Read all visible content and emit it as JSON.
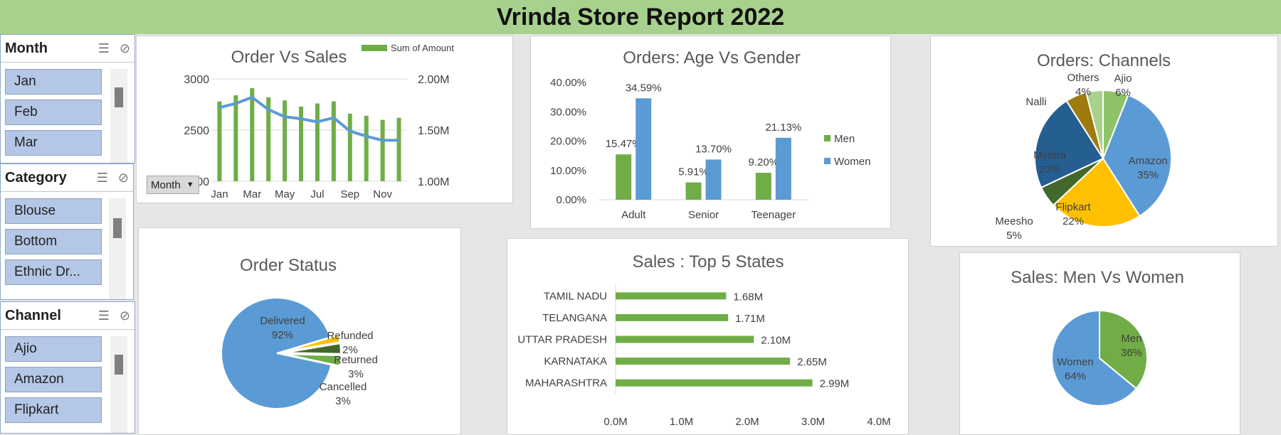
{
  "report_title": "Vrinda Store Report 2022",
  "colors": {
    "green": "#70ad47",
    "blue": "#5b9bd5",
    "yellow": "#ffc000",
    "dark_blue": "#255e91",
    "dark_green": "#43682b",
    "olive": "#9e7b0f",
    "light_green": "#8fc36a",
    "slicer_item": "#b4c7e7",
    "header_green": "#a9d18e"
  },
  "slicers": [
    {
      "title": "Month",
      "items": [
        "Jan",
        "Feb",
        "Mar"
      ],
      "icons": [
        "multi-select-icon",
        "clear-filter-icon"
      ]
    },
    {
      "title": "Category",
      "items": [
        "Blouse",
        "Bottom",
        "Ethnic Dr..."
      ],
      "icons": [
        "multi-select-icon",
        "clear-filter-icon"
      ]
    },
    {
      "title": "Channel",
      "items": [
        "Ajio",
        "Amazon",
        "Flipkart"
      ],
      "icons": [
        "multi-select-icon",
        "clear-filter-icon"
      ]
    }
  ],
  "month_filter_button": "Month",
  "chart_data": [
    {
      "id": "order_vs_sales",
      "type": "bar",
      "title": "Order Vs Sales",
      "legend": [
        "Sum of Amount"
      ],
      "legend_position": "top-right",
      "categories": [
        "Jan",
        "Feb",
        "Mar",
        "Apr",
        "May",
        "Jun",
        "Jul",
        "Aug",
        "Sep",
        "Oct",
        "Nov",
        "Dec"
      ],
      "x_tick_labels": [
        "Jan",
        "Mar",
        "May",
        "Jul",
        "Sep",
        "Nov"
      ],
      "series": [
        {
          "name": "Sum of Amount",
          "type": "bar",
          "axis": "right",
          "values": [
            1.78,
            1.84,
            1.91,
            1.82,
            1.79,
            1.73,
            1.76,
            1.78,
            1.66,
            1.64,
            1.6,
            1.62
          ]
        },
        {
          "type": "line",
          "axis": "left",
          "values": [
            2720,
            2760,
            2820,
            2700,
            2630,
            2610,
            2580,
            2620,
            2490,
            2440,
            2400,
            2400
          ]
        }
      ],
      "y_left_ticks": [
        "3000",
        "2500",
        "2000"
      ],
      "y_left_range": [
        2000,
        3000
      ],
      "y_right_ticks": [
        "2.00M",
        "1.50M",
        "1.00M"
      ],
      "y_right_range": [
        1.0,
        2.0
      ],
      "grid": true
    },
    {
      "id": "age_vs_gender",
      "type": "bar",
      "title": "Orders: Age Vs Gender",
      "categories": [
        "Adult",
        "Senior",
        "Teenager"
      ],
      "series": [
        {
          "name": "Men",
          "values": [
            15.47,
            5.91,
            9.2
          ],
          "labels": [
            "15.47%",
            "5.91%",
            "9.20%"
          ]
        },
        {
          "name": "Women",
          "values": [
            34.59,
            13.7,
            21.13
          ],
          "labels": [
            "34.59%",
            "13.70%",
            "21.13%"
          ]
        }
      ],
      "y_ticks": [
        "40.00%",
        "30.00%",
        "20.00%",
        "10.00%",
        "0.00%"
      ],
      "ylim": [
        0,
        40
      ],
      "legend_position": "right",
      "grid": false
    },
    {
      "id": "channels",
      "type": "pie",
      "title": "Orders: Channels",
      "slices": [
        {
          "name": "Ajio",
          "value": 6,
          "label": "6%"
        },
        {
          "name": "Amazon",
          "value": 35,
          "label": "35%"
        },
        {
          "name": "Flipkart",
          "value": 22,
          "label": "22%"
        },
        {
          "name": "Meesho",
          "value": 5,
          "label": "5%"
        },
        {
          "name": "Myntra",
          "value": 23,
          "label": "23%"
        },
        {
          "name": "Nalli",
          "value": 5,
          "label": ""
        },
        {
          "name": "Others",
          "value": 4,
          "label": "4%"
        }
      ]
    },
    {
      "id": "order_status",
      "type": "pie",
      "title": "Order Status",
      "slices": [
        {
          "name": "Delivered",
          "value": 92,
          "label": "92%"
        },
        {
          "name": "Refunded",
          "value": 2,
          "label": "2%"
        },
        {
          "name": "Returned",
          "value": 3,
          "label": "3%"
        },
        {
          "name": "Cancelled",
          "value": 3,
          "label": "3%"
        }
      ]
    },
    {
      "id": "top_states",
      "type": "bar",
      "orientation": "horizontal",
      "title": "Sales : Top 5 States",
      "categories": [
        "TAMIL NADU",
        "TELANGANA",
        "UTTAR PRADESH",
        "KARNATAKA",
        "MAHARASHTRA"
      ],
      "values": [
        1.68,
        1.71,
        2.1,
        2.65,
        2.99
      ],
      "labels": [
        "1.68M",
        "1.71M",
        "2.10M",
        "2.65M",
        "2.99M"
      ],
      "x_ticks": [
        "0.0M",
        "1.0M",
        "2.0M",
        "3.0M",
        "4.0M"
      ],
      "xlim": [
        0,
        4
      ]
    },
    {
      "id": "men_vs_women",
      "type": "pie",
      "title": "Sales: Men Vs Women",
      "slices": [
        {
          "name": "Men",
          "value": 36,
          "label": "36%"
        },
        {
          "name": "Women",
          "value": 64,
          "label": "64%"
        }
      ]
    }
  ]
}
